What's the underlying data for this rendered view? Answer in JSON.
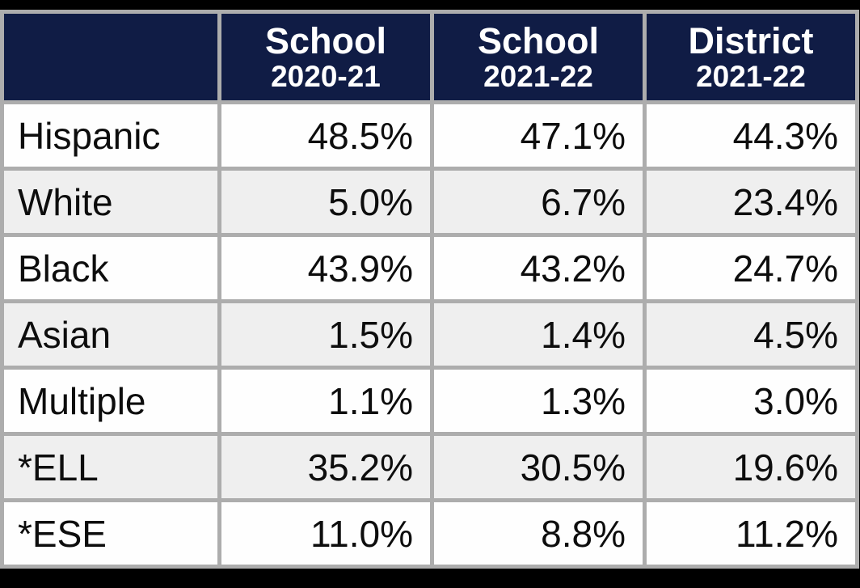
{
  "table": {
    "columns": [
      {
        "title": "School",
        "subtitle": "2020-21"
      },
      {
        "title": "School",
        "subtitle": "2021-22"
      },
      {
        "title": "District",
        "subtitle": "2021-22"
      }
    ],
    "rows": [
      {
        "label": "Hispanic",
        "values": [
          "48.5%",
          "47.1%",
          "44.3%"
        ]
      },
      {
        "label": "White",
        "values": [
          "5.0%",
          "6.7%",
          "23.4%"
        ]
      },
      {
        "label": "Black",
        "values": [
          "43.9%",
          "43.2%",
          "24.7%"
        ]
      },
      {
        "label": "Asian",
        "values": [
          "1.5%",
          "1.4%",
          "4.5%"
        ]
      },
      {
        "label": "Multiple",
        "values": [
          "1.1%",
          "1.3%",
          "3.0%"
        ]
      },
      {
        "label": "*ELL",
        "values": [
          "35.2%",
          "30.5%",
          "19.6%"
        ]
      },
      {
        "label": "*ESE",
        "values": [
          "11.0%",
          "8.8%",
          "11.2%"
        ]
      }
    ]
  },
  "colors": {
    "header_background": "#101c45",
    "header_text": "#ffffff",
    "border": "#adadad",
    "row_plain": "#fefefe",
    "row_shade": "#efefef",
    "body_text": "#0d0d0d",
    "page_background": "#000000"
  },
  "chart_data": {
    "type": "table",
    "title": "",
    "categories": [
      "Hispanic",
      "White",
      "Black",
      "Asian",
      "Multiple",
      "*ELL",
      "*ESE"
    ],
    "series": [
      {
        "name": "School 2020-21",
        "values": [
          48.5,
          5.0,
          43.9,
          1.5,
          1.1,
          35.2,
          11.0
        ]
      },
      {
        "name": "School 2021-22",
        "values": [
          47.1,
          6.7,
          43.2,
          1.4,
          1.3,
          30.5,
          8.8
        ]
      },
      {
        "name": "District 2021-22",
        "values": [
          44.3,
          23.4,
          24.7,
          4.5,
          3.0,
          19.6,
          11.2
        ]
      }
    ],
    "value_unit": "percent",
    "layout": {
      "header_rows": 1,
      "zebra_striping": true
    }
  }
}
